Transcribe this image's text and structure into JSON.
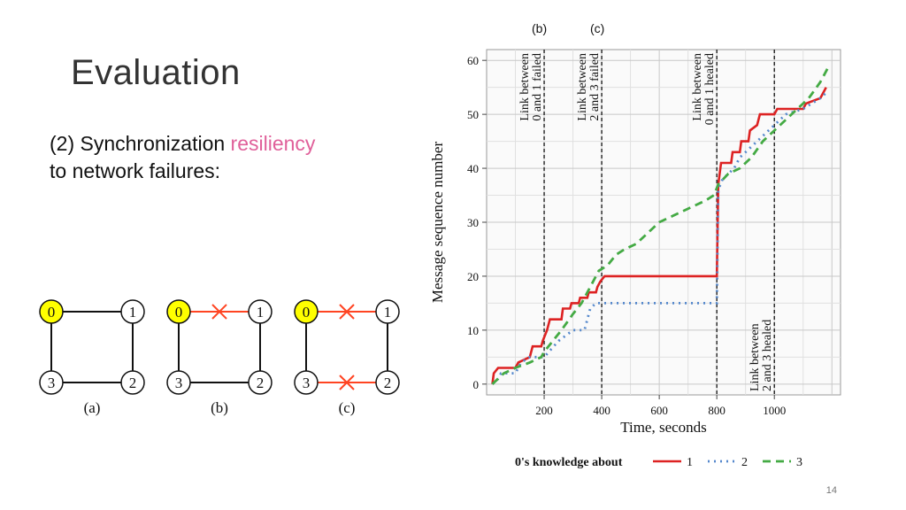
{
  "slide": {
    "title": "Evaluation",
    "body_line1_prefix": "(2) Synchronization ",
    "body_line1_highlight": "resiliency",
    "body_line2": "to network failures:",
    "top_label_b": "(b)",
    "top_label_c": "(c)",
    "page_number": "14",
    "accent_color": "#e0609a"
  },
  "topology": {
    "node_fill_highlight": "#ffff00",
    "failure_color": "#ff4422",
    "diagrams": [
      {
        "caption": "(a)",
        "nodes": [
          "0",
          "1",
          "3",
          "2"
        ],
        "failed_links": []
      },
      {
        "caption": "(b)",
        "nodes": [
          "0",
          "1",
          "3",
          "2"
        ],
        "failed_links": [
          "0-1"
        ]
      },
      {
        "caption": "(c)",
        "nodes": [
          "0",
          "1",
          "3",
          "2"
        ],
        "failed_links": [
          "0-1",
          "3-2"
        ]
      }
    ]
  },
  "chart_data": {
    "type": "line",
    "xlabel": "Time, seconds",
    "ylabel": "Message sequence number",
    "xlim": [
      0,
      1230
    ],
    "ylim": [
      -2,
      62
    ],
    "x_ticks": [
      "200",
      "400",
      "600",
      "800",
      "1000"
    ],
    "y_ticks": [
      "0",
      "10",
      "20",
      "30",
      "40",
      "50",
      "60"
    ],
    "grid": true,
    "legend_position": "bottom",
    "legend_title": "0's knowledge about",
    "events": [
      {
        "x": 200,
        "label_line1": "Link between",
        "label_line2": "0 and 1 failed"
      },
      {
        "x": 400,
        "label_line1": "Link between",
        "label_line2": "2 and 3 failed"
      },
      {
        "x": 800,
        "label_line1": "Link between",
        "label_line2": "0 and 1 healed"
      },
      {
        "x": 1000,
        "label_line1": "Link between",
        "label_line2": "2 and 3 healed"
      }
    ],
    "series": [
      {
        "name": "1",
        "color": "#dd2222",
        "dash": "",
        "points": [
          [
            20,
            0
          ],
          [
            25,
            2
          ],
          [
            40,
            3
          ],
          [
            100,
            3
          ],
          [
            110,
            4
          ],
          [
            150,
            5
          ],
          [
            160,
            7
          ],
          [
            190,
            7
          ],
          [
            195,
            8
          ],
          [
            210,
            10
          ],
          [
            220,
            12
          ],
          [
            260,
            12
          ],
          [
            265,
            14
          ],
          [
            290,
            14
          ],
          [
            295,
            15
          ],
          [
            320,
            15
          ],
          [
            325,
            16
          ],
          [
            350,
            16
          ],
          [
            355,
            17
          ],
          [
            380,
            17
          ],
          [
            385,
            18
          ],
          [
            395,
            19
          ],
          [
            410,
            20
          ],
          [
            800,
            20
          ],
          [
            805,
            37
          ],
          [
            815,
            41
          ],
          [
            850,
            41
          ],
          [
            855,
            43
          ],
          [
            880,
            43
          ],
          [
            885,
            45
          ],
          [
            910,
            45
          ],
          [
            915,
            47
          ],
          [
            940,
            48
          ],
          [
            950,
            50
          ],
          [
            1000,
            50
          ],
          [
            1010,
            51
          ],
          [
            1100,
            51
          ],
          [
            1110,
            52
          ],
          [
            1160,
            53
          ],
          [
            1170,
            54
          ],
          [
            1180,
            55
          ]
        ]
      },
      {
        "name": "2",
        "color": "#5588cc",
        "dash": "2 5",
        "points": [
          [
            20,
            0
          ],
          [
            40,
            1
          ],
          [
            50,
            2
          ],
          [
            100,
            2
          ],
          [
            120,
            4
          ],
          [
            150,
            5
          ],
          [
            200,
            5
          ],
          [
            250,
            8
          ],
          [
            300,
            10
          ],
          [
            340,
            10
          ],
          [
            360,
            14
          ],
          [
            380,
            15
          ],
          [
            400,
            15
          ],
          [
            800,
            15
          ],
          [
            805,
            36
          ],
          [
            820,
            38
          ],
          [
            860,
            40
          ],
          [
            880,
            42
          ],
          [
            920,
            44
          ],
          [
            960,
            46
          ],
          [
            1000,
            48
          ],
          [
            1040,
            50
          ],
          [
            1100,
            51
          ],
          [
            1130,
            52
          ],
          [
            1160,
            53
          ],
          [
            1180,
            54
          ]
        ]
      },
      {
        "name": "3",
        "color": "#44aa44",
        "dash": "9 6",
        "points": [
          [
            20,
            0
          ],
          [
            40,
            1
          ],
          [
            60,
            2
          ],
          [
            100,
            3
          ],
          [
            150,
            4
          ],
          [
            190,
            5
          ],
          [
            200,
            6
          ],
          [
            230,
            8
          ],
          [
            260,
            10
          ],
          [
            300,
            13
          ],
          [
            330,
            15
          ],
          [
            360,
            18
          ],
          [
            390,
            21
          ],
          [
            420,
            22
          ],
          [
            450,
            24
          ],
          [
            480,
            25
          ],
          [
            520,
            26
          ],
          [
            560,
            28
          ],
          [
            600,
            30
          ],
          [
            640,
            31
          ],
          [
            680,
            32
          ],
          [
            720,
            33
          ],
          [
            760,
            34
          ],
          [
            790,
            35
          ],
          [
            805,
            37
          ],
          [
            840,
            39
          ],
          [
            880,
            40
          ],
          [
            920,
            42
          ],
          [
            960,
            45
          ],
          [
            1000,
            47
          ],
          [
            1040,
            49
          ],
          [
            1080,
            51
          ],
          [
            1120,
            53
          ],
          [
            1160,
            56
          ],
          [
            1190,
            59
          ]
        ]
      }
    ]
  }
}
